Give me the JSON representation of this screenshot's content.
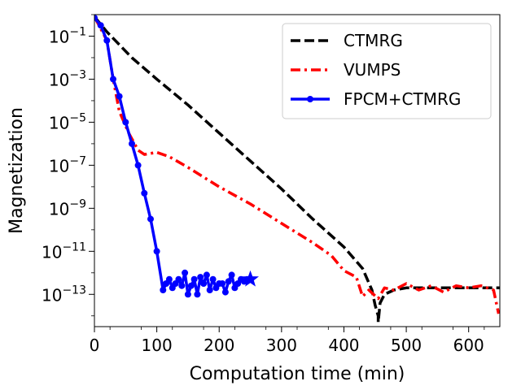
{
  "chart_data": {
    "type": "line",
    "xlabel": "Computation time (min)",
    "ylabel": "Magnetization",
    "xlim": [
      0,
      650
    ],
    "ylim_log10": [
      -14.5,
      0
    ],
    "y_scale": "log",
    "x_ticks": [
      "0",
      "100",
      "200",
      "300",
      "400",
      "500",
      "600"
    ],
    "x_tick_values": [
      0,
      100,
      200,
      300,
      400,
      500,
      600
    ],
    "y_tick_exponents": [
      -1,
      -3,
      -5,
      -7,
      -9,
      -11,
      -13
    ],
    "y_tick_base": "10",
    "grid": false,
    "legend_position": "top-right",
    "series": [
      {
        "name": "CTMRG",
        "color": "#000000",
        "style": "dashed",
        "marker": "none",
        "points": [
          [
            0,
            -0.1
          ],
          [
            20,
            -0.8
          ],
          [
            60,
            -2.0
          ],
          [
            100,
            -3.0
          ],
          [
            150,
            -4.2
          ],
          [
            200,
            -5.5
          ],
          [
            250,
            -6.8
          ],
          [
            300,
            -8.1
          ],
          [
            350,
            -9.5
          ],
          [
            400,
            -10.8
          ],
          [
            430,
            -11.8
          ],
          [
            445,
            -12.8
          ],
          [
            450,
            -13.5
          ],
          [
            455,
            -14.0
          ],
          [
            455,
            -14.3
          ],
          [
            458,
            -13.4
          ],
          [
            465,
            -13.0
          ],
          [
            480,
            -12.8
          ],
          [
            500,
            -12.7
          ],
          [
            650,
            -12.7
          ]
        ]
      },
      {
        "name": "VUMPS",
        "color": "#ff0000",
        "style": "dashdot",
        "marker": "none",
        "points": [
          [
            0,
            -0.1
          ],
          [
            20,
            -1.2
          ],
          [
            30,
            -3.0
          ],
          [
            40,
            -4.5
          ],
          [
            55,
            -5.5
          ],
          [
            70,
            -6.3
          ],
          [
            80,
            -6.5
          ],
          [
            100,
            -6.4
          ],
          [
            120,
            -6.6
          ],
          [
            150,
            -7.1
          ],
          [
            200,
            -8.0
          ],
          [
            250,
            -8.8
          ],
          [
            300,
            -9.7
          ],
          [
            350,
            -10.6
          ],
          [
            380,
            -11.2
          ],
          [
            400,
            -11.9
          ],
          [
            420,
            -12.2
          ],
          [
            430,
            -13.1
          ],
          [
            440,
            -12.8
          ],
          [
            455,
            -13.2
          ],
          [
            465,
            -12.7
          ],
          [
            480,
            -12.8
          ],
          [
            500,
            -12.5
          ],
          [
            520,
            -12.8
          ],
          [
            540,
            -12.6
          ],
          [
            560,
            -12.9
          ],
          [
            580,
            -12.6
          ],
          [
            600,
            -12.7
          ],
          [
            620,
            -12.6
          ],
          [
            640,
            -12.8
          ],
          [
            648,
            -13.9
          ]
        ]
      },
      {
        "name": "FPCM+CTMRG",
        "color": "#0000ff",
        "style": "solid",
        "marker": "circle",
        "end_marker": "star",
        "points": [
          [
            0,
            -0.15
          ],
          [
            10,
            -0.5
          ],
          [
            20,
            -1.2
          ],
          [
            30,
            -3.0
          ],
          [
            40,
            -3.8
          ],
          [
            50,
            -5.0
          ],
          [
            60,
            -6.0
          ],
          [
            70,
            -7.0
          ],
          [
            80,
            -8.3
          ],
          [
            90,
            -9.5
          ],
          [
            100,
            -11.0
          ],
          [
            110,
            -12.8
          ],
          [
            115,
            -12.5
          ],
          [
            120,
            -12.3
          ],
          [
            125,
            -12.7
          ],
          [
            130,
            -12.5
          ],
          [
            135,
            -12.3
          ],
          [
            140,
            -12.6
          ],
          [
            145,
            -12.0
          ],
          [
            150,
            -13.0
          ],
          [
            155,
            -12.6
          ],
          [
            160,
            -12.3
          ],
          [
            165,
            -13.0
          ],
          [
            170,
            -12.2
          ],
          [
            175,
            -12.5
          ],
          [
            180,
            -12.1
          ],
          [
            185,
            -12.8
          ],
          [
            190,
            -12.3
          ],
          [
            195,
            -12.7
          ],
          [
            200,
            -12.5
          ],
          [
            205,
            -12.5
          ],
          [
            210,
            -12.9
          ],
          [
            215,
            -12.4
          ],
          [
            220,
            -12.1
          ],
          [
            225,
            -12.7
          ],
          [
            230,
            -12.5
          ],
          [
            235,
            -12.3
          ],
          [
            240,
            -12.4
          ],
          [
            245,
            -12.3
          ],
          [
            250,
            -12.3
          ]
        ]
      }
    ]
  }
}
